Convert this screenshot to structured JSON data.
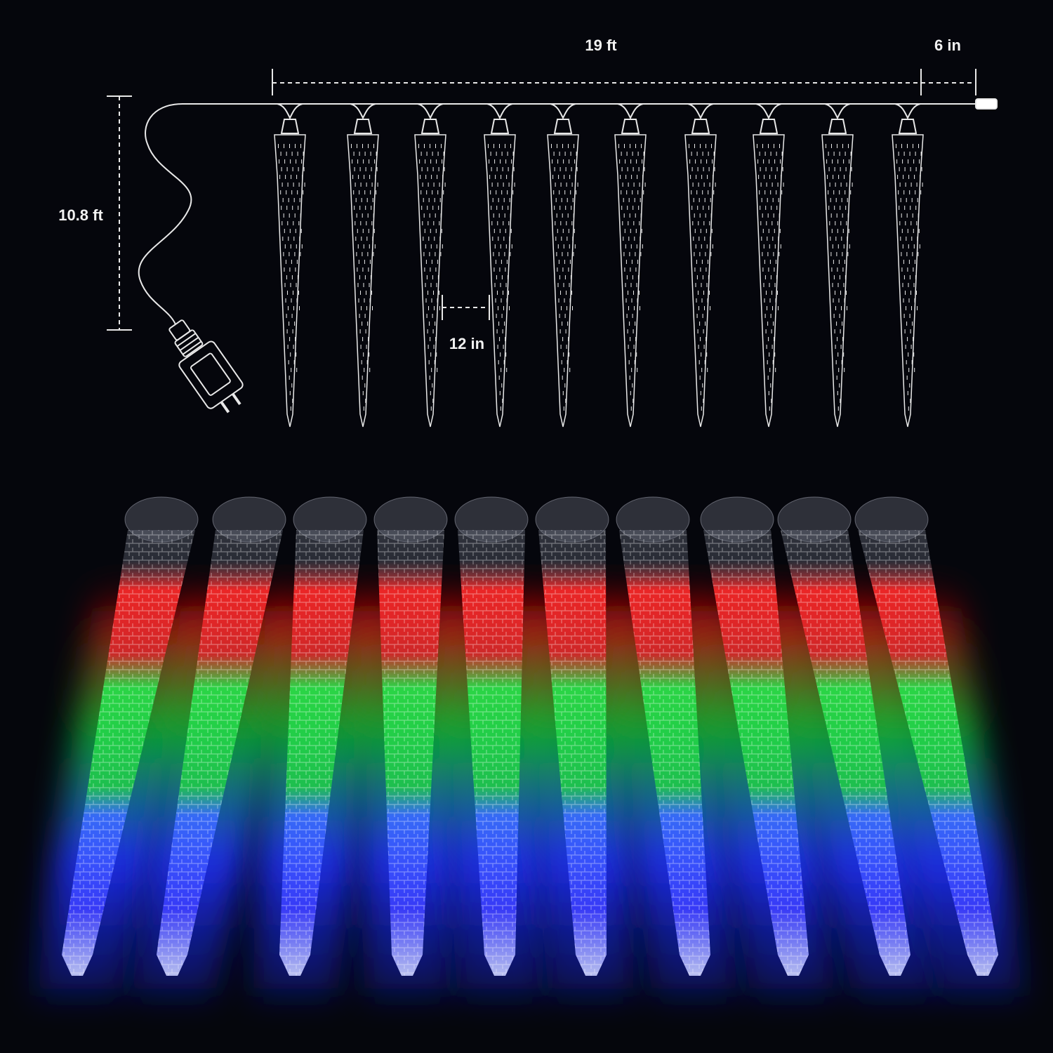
{
  "dimensions": {
    "length": "19 ft",
    "end_lead": "6 in",
    "lead_wire": "10.8 ft",
    "spacing": "12 in"
  }
}
